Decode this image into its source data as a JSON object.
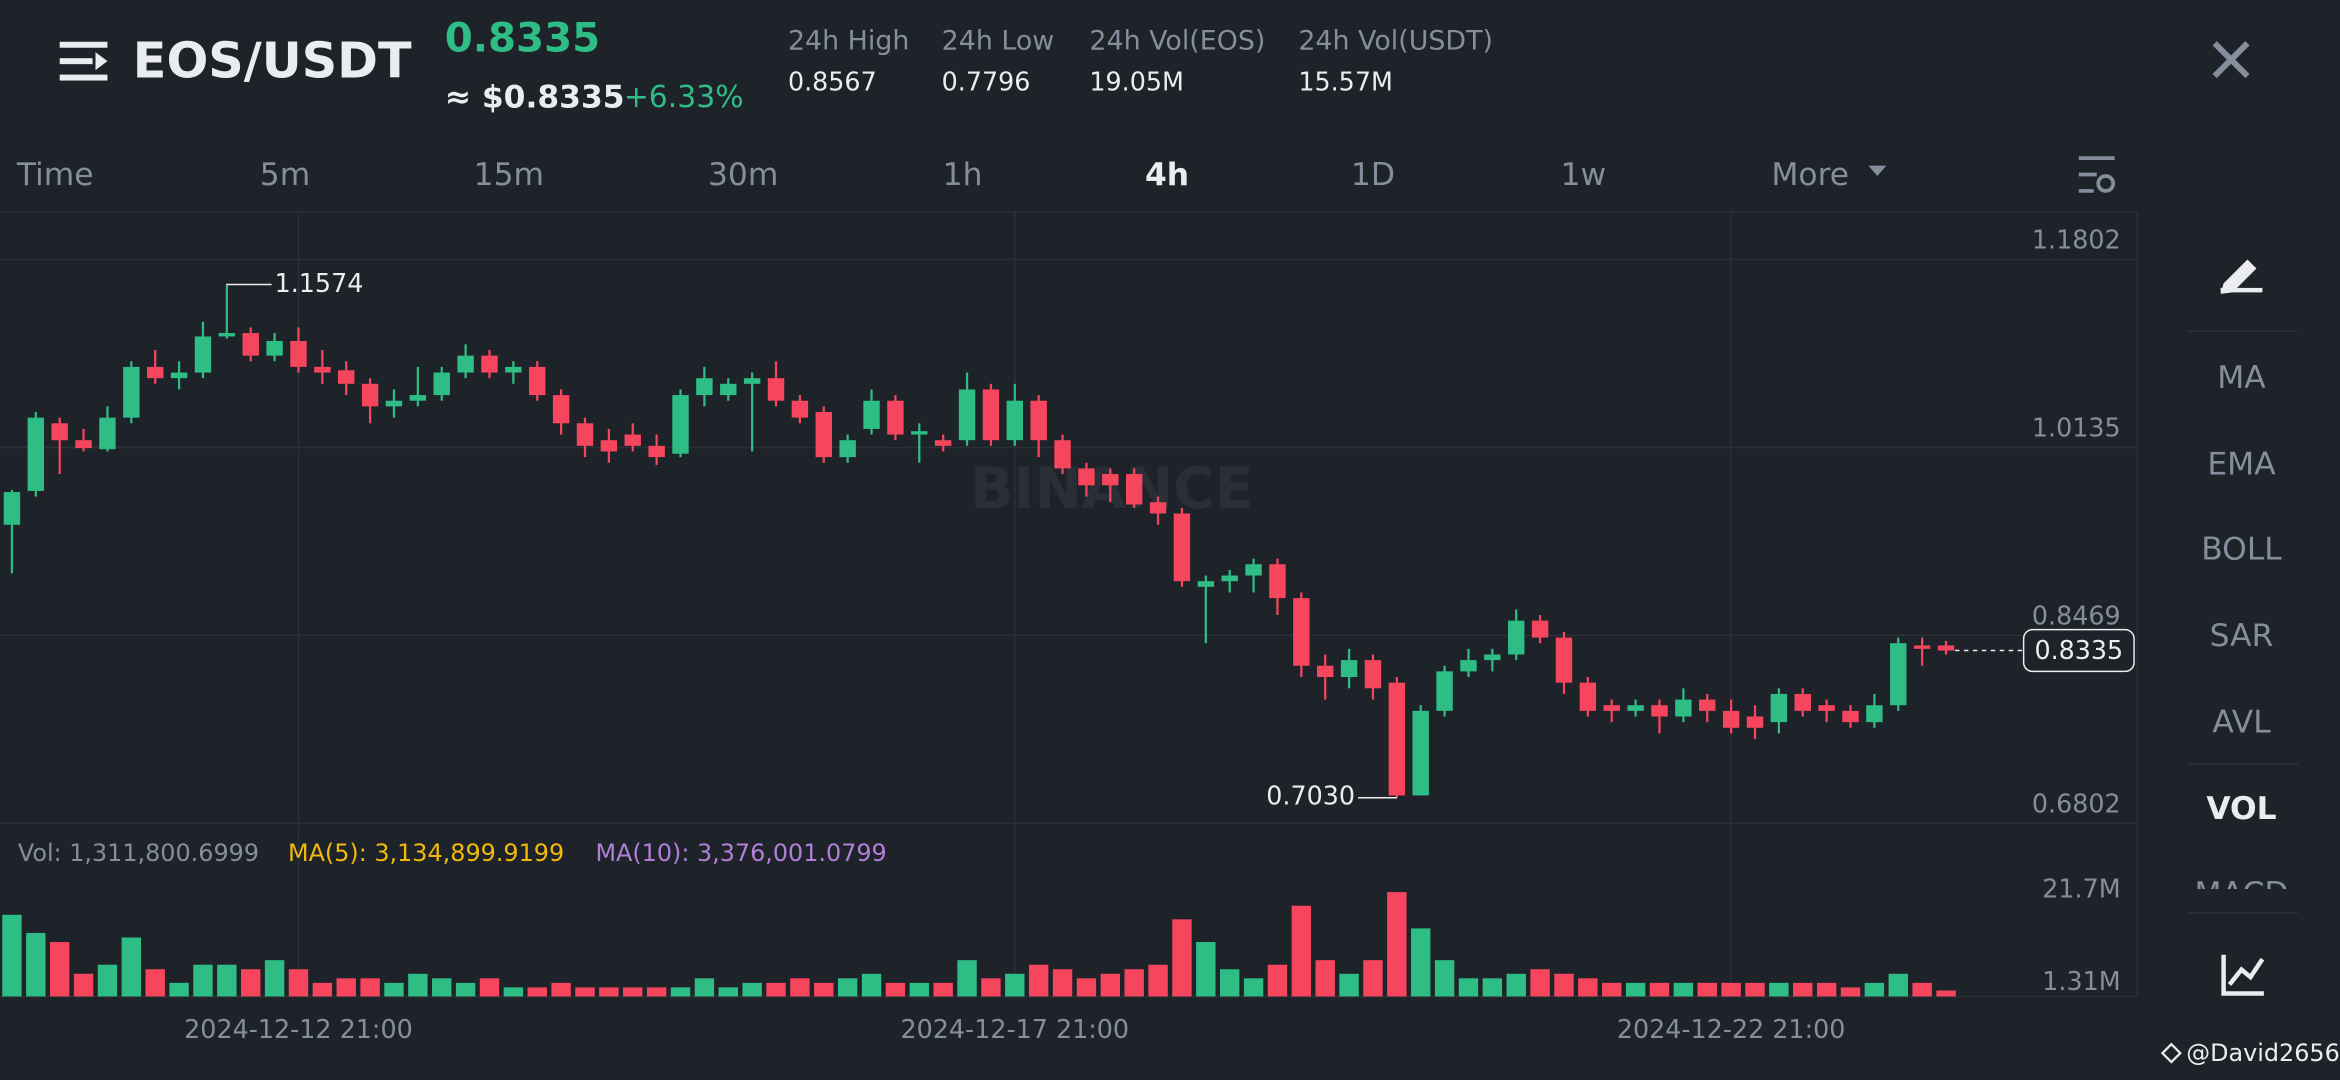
{
  "header": {
    "pair": "EOS/USDT",
    "price": "0.8335",
    "usd_price": "≈ $0.8335",
    "change": "+6.33%",
    "stats": [
      {
        "label": "24h High",
        "value": "0.8567"
      },
      {
        "label": "24h Low",
        "value": "0.7796"
      },
      {
        "label": "24h Vol(EOS)",
        "value": "19.05M"
      },
      {
        "label": "24h Vol(USDT)",
        "value": "15.57M"
      }
    ]
  },
  "tabs": [
    "Time",
    "5m",
    "15m",
    "30m",
    "1h",
    "4h",
    "1D",
    "1w",
    "More"
  ],
  "active_tab": 5,
  "sidebar": [
    "MA",
    "EMA",
    "BOLL",
    "SAR",
    "AVL",
    "VOL",
    "MACD"
  ],
  "active_indicator": 5,
  "watermark": "BINANCE",
  "footer": "@David2656",
  "chart_data": {
    "type": "candlestick",
    "categories": [
      null,
      null,
      null,
      null,
      null,
      null,
      null,
      null,
      null,
      null,
      null,
      null,
      "2024-12-12 21:00",
      null,
      null,
      null,
      null,
      null,
      null,
      null,
      null,
      null,
      null,
      null,
      null,
      null,
      null,
      null,
      null,
      null,
      null,
      null,
      null,
      null,
      null,
      null,
      null,
      null,
      null,
      null,
      null,
      null,
      "2024-12-17 21:00",
      null,
      null,
      null,
      null,
      null,
      null,
      null,
      null,
      null,
      null,
      null,
      null,
      null,
      null,
      null,
      null,
      null,
      null,
      null,
      null,
      null,
      null,
      null,
      null,
      null,
      null,
      null,
      null,
      null,
      "2024-12-22 21:00",
      null,
      null,
      null,
      null,
      null,
      null,
      null,
      null,
      null
    ],
    "open": [
      0.945,
      0.975,
      1.035,
      1.02,
      1.012,
      1.04,
      1.085,
      1.075,
      1.08,
      1.112,
      1.115,
      1.095,
      1.108,
      1.085,
      1.082,
      1.07,
      1.05,
      1.055,
      1.06,
      1.08,
      1.095,
      1.08,
      1.085,
      1.06,
      1.035,
      1.02,
      1.025,
      1.015,
      1.008,
      1.06,
      1.06,
      1.07,
      1.075,
      1.055,
      1.045,
      1.005,
      1.03,
      1.055,
      1.025,
      1.02,
      1.02,
      1.065,
      1.02,
      1.055,
      1.02,
      0.995,
      0.99,
      0.99,
      0.965,
      0.955,
      0.89,
      0.895,
      0.9,
      0.91,
      0.88,
      0.82,
      0.81,
      0.825,
      0.805,
      0.705,
      0.78,
      0.815,
      0.825,
      0.83,
      0.86,
      0.845,
      0.805,
      0.785,
      0.78,
      0.785,
      0.775,
      0.79,
      0.78,
      0.775,
      0.77,
      0.795,
      0.785,
      0.78,
      0.77,
      0.785,
      0.838,
      0.838
    ],
    "high": [
      0.976,
      1.045,
      1.04,
      1.03,
      1.05,
      1.09,
      1.1,
      1.09,
      1.125,
      1.1574,
      1.12,
      1.115,
      1.12,
      1.1,
      1.09,
      1.075,
      1.065,
      1.085,
      1.085,
      1.105,
      1.1,
      1.09,
      1.09,
      1.065,
      1.04,
      1.03,
      1.035,
      1.025,
      1.065,
      1.085,
      1.075,
      1.08,
      1.09,
      1.06,
      1.05,
      1.025,
      1.065,
      1.06,
      1.035,
      1.025,
      1.08,
      1.07,
      1.07,
      1.06,
      1.025,
      1.0,
      0.995,
      0.995,
      0.97,
      0.96,
      0.9,
      0.905,
      0.915,
      0.915,
      0.885,
      0.83,
      0.835,
      0.83,
      0.81,
      0.785,
      0.82,
      0.835,
      0.835,
      0.87,
      0.865,
      0.85,
      0.81,
      0.79,
      0.79,
      0.79,
      0.8,
      0.795,
      0.79,
      0.785,
      0.8,
      0.8,
      0.79,
      0.785,
      0.795,
      0.845,
      0.845,
      0.842
    ],
    "low": [
      0.902,
      0.97,
      0.99,
      1.01,
      1.01,
      1.035,
      1.07,
      1.065,
      1.075,
      1.11,
      1.09,
      1.09,
      1.08,
      1.07,
      1.06,
      1.035,
      1.04,
      1.05,
      1.055,
      1.075,
      1.075,
      1.07,
      1.055,
      1.025,
      1.005,
      1.0,
      1.01,
      0.998,
      1.005,
      1.05,
      1.055,
      1.01,
      1.05,
      1.035,
      1.0,
      1.0,
      1.025,
      1.02,
      1.0,
      1.01,
      1.015,
      1.015,
      1.015,
      1.005,
      0.99,
      0.97,
      0.965,
      0.96,
      0.945,
      0.89,
      0.84,
      0.885,
      0.885,
      0.865,
      0.81,
      0.79,
      0.8,
      0.79,
      0.703,
      0.706,
      0.775,
      0.81,
      0.815,
      0.825,
      0.84,
      0.795,
      0.775,
      0.77,
      0.775,
      0.76,
      0.77,
      0.77,
      0.76,
      0.755,
      0.76,
      0.775,
      0.77,
      0.765,
      0.765,
      0.78,
      0.82,
      0.83
    ],
    "close": [
      0.974,
      1.04,
      1.02,
      1.013,
      1.04,
      1.085,
      1.075,
      1.08,
      1.112,
      1.115,
      1.095,
      1.108,
      1.085,
      1.08,
      1.07,
      1.05,
      1.055,
      1.06,
      1.08,
      1.095,
      1.08,
      1.085,
      1.06,
      1.035,
      1.015,
      1.01,
      1.015,
      1.005,
      1.06,
      1.075,
      1.07,
      1.075,
      1.055,
      1.04,
      1.005,
      1.02,
      1.055,
      1.025,
      1.028,
      1.015,
      1.065,
      1.02,
      1.055,
      1.02,
      0.995,
      0.98,
      0.98,
      0.963,
      0.955,
      0.895,
      0.895,
      0.9,
      0.91,
      0.88,
      0.82,
      0.81,
      0.825,
      0.8,
      0.705,
      0.78,
      0.815,
      0.825,
      0.83,
      0.86,
      0.845,
      0.805,
      0.78,
      0.78,
      0.785,
      0.775,
      0.79,
      0.78,
      0.765,
      0.765,
      0.795,
      0.78,
      0.78,
      0.77,
      0.785,
      0.84,
      0.835,
      0.8335
    ],
    "up_color": "#2ebd85",
    "down_color": "#f6465d",
    "ylim": [
      0.6802,
      1.2225
    ],
    "yticks": [
      1.1802,
      1.0135,
      0.8469,
      0.6802
    ],
    "high_label": "1.1574",
    "low_label": "0.7030",
    "last_label": "0.8335",
    "volume": [
      18,
      14,
      12,
      5,
      7,
      13,
      6,
      3,
      7,
      7,
      6,
      8,
      6,
      3,
      4,
      4,
      3,
      5,
      4,
      3,
      4,
      2,
      2,
      3,
      2,
      2,
      2,
      2,
      2,
      4,
      2,
      3,
      3,
      4,
      3,
      4,
      5,
      3,
      3,
      3,
      8,
      4,
      5,
      7,
      6,
      4,
      5,
      6,
      7,
      17,
      12,
      6,
      4,
      7,
      20,
      8,
      5,
      8,
      23,
      15,
      8,
      4,
      4,
      5,
      6,
      5,
      4,
      3,
      3,
      3,
      3,
      3,
      3,
      3,
      3,
      3,
      3,
      2,
      3,
      5,
      3,
      1.3118
    ],
    "vlim": [
      0,
      24
    ],
    "vticks": [
      {
        "value": 21.7,
        "label": "21.7M"
      },
      {
        "value": 1.31,
        "label": "1.31M"
      }
    ],
    "volume_legend": [
      {
        "text": "Vol: 1,311,800.6999",
        "color": "#848e9c"
      },
      {
        "text": "MA(5): 3,134,899.9199",
        "color": "#f0b90b"
      },
      {
        "text": "MA(10): 3,376,001.0799",
        "color": "#b07fd8"
      }
    ]
  }
}
